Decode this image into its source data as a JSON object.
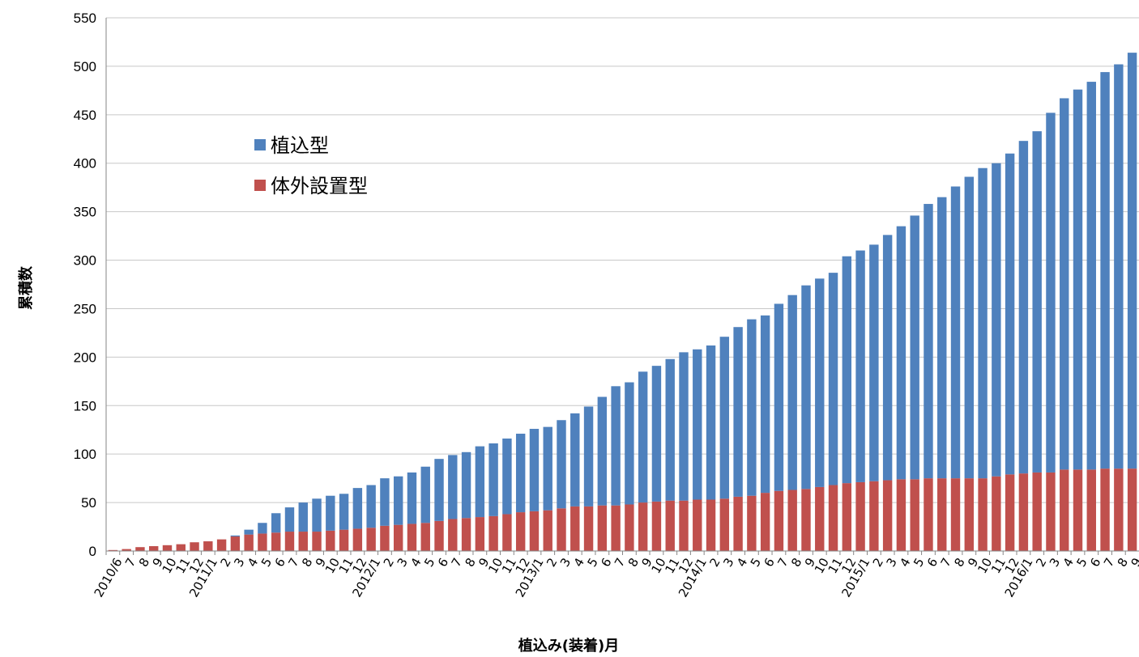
{
  "chart_data": {
    "type": "bar",
    "stacked": true,
    "xlabel": "植込み(装着)月",
    "ylabel": "累積数",
    "ylim": [
      0,
      550
    ],
    "yticks": [
      0,
      50,
      100,
      150,
      200,
      250,
      300,
      350,
      400,
      450,
      500,
      550
    ],
    "grid": true,
    "legend_position": "upper-left",
    "colors": {
      "植込型": "#4f81bd",
      "体外設置型": "#c0504d"
    },
    "categories": [
      "2010/6",
      "7",
      "8",
      "9",
      "10",
      "11",
      "12",
      "2011/1",
      "2",
      "3",
      "4",
      "5",
      "6",
      "7",
      "8",
      "9",
      "10",
      "11",
      "12",
      "2012/1",
      "2",
      "3",
      "4",
      "5",
      "6",
      "7",
      "8",
      "9",
      "10",
      "11",
      "12",
      "2013/1",
      "2",
      "3",
      "4",
      "5",
      "6",
      "7",
      "8",
      "9",
      "10",
      "11",
      "12",
      "2014/1",
      "2",
      "3",
      "4",
      "5",
      "6",
      "7",
      "8",
      "9",
      "10",
      "11",
      "12",
      "2015/1",
      "2",
      "3",
      "4",
      "5",
      "6",
      "7",
      "8",
      "9",
      "10",
      "11",
      "12",
      "2016/1",
      "2",
      "3",
      "4",
      "5",
      "6",
      "7",
      "8",
      "9"
    ],
    "series": [
      {
        "name": "体外設置型",
        "values": [
          1,
          2,
          4,
          5,
          6,
          7,
          9,
          10,
          12,
          15,
          17,
          18,
          19,
          20,
          20,
          20,
          21,
          22,
          23,
          24,
          26,
          27,
          28,
          29,
          31,
          33,
          34,
          35,
          36,
          38,
          40,
          41,
          42,
          44,
          46,
          46,
          47,
          47,
          48,
          50,
          51,
          52,
          52,
          53,
          53,
          54,
          56,
          57,
          60,
          62,
          63,
          64,
          66,
          68,
          70,
          71,
          72,
          73,
          74,
          74,
          75,
          75,
          75,
          75,
          75,
          77,
          79,
          80,
          81,
          81,
          84,
          84,
          84,
          85,
          85,
          85
        ]
      },
      {
        "name": "植込型",
        "values": [
          0,
          0,
          0,
          0,
          0,
          0,
          0,
          0,
          0,
          1,
          5,
          11,
          20,
          25,
          30,
          34,
          36,
          37,
          42,
          44,
          49,
          50,
          53,
          58,
          64,
          66,
          68,
          73,
          75,
          78,
          81,
          85,
          86,
          91,
          96,
          103,
          112,
          123,
          126,
          135,
          140,
          146,
          153,
          155,
          159,
          167,
          175,
          182,
          183,
          193,
          201,
          210,
          215,
          219,
          234,
          239,
          244,
          253,
          261,
          272,
          283,
          290,
          301,
          311,
          320,
          323,
          331,
          343,
          352,
          371,
          383,
          392,
          400,
          409,
          417,
          429
        ]
      }
    ]
  }
}
